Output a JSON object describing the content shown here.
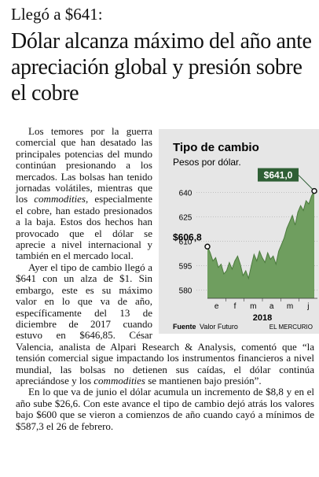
{
  "kicker": "Llegó a $641:",
  "headline": "Dólar alcanza máximo del año ante apreciación global y presión sobre el cobre",
  "paragraphs": [
    [
      "Los temores por la guerra comercial que han desatado las principales potencias del mundo continúan presionando a los mercados. Las bolsas han tenido jornadas volátiles, mientras que los ",
      {
        "em": "commodities"
      },
      ", especialmente el cobre, han estado presionados a la baja. Estos dos hechos han provocado que el dólar se aprecie a nivel internacional y también en el mercado local."
    ],
    [
      "Ayer el tipo de cambio llegó a $641 con un alza de $1. Sin embargo, este es su máximo valor en lo que va de año, específicamente del 13 de diciembre de 2017 cuando estuvo en $646,85. César Valencia, analista de Alpari Research & Analysis, comentó que “la tensión comercial sigue impactando los instrumentos financieros a nivel mundial, las bolsas no detienen sus caídas, el dólar continúa apreciándose y los ",
      {
        "em": "commodities"
      },
      " se mantienen bajo presión”."
    ],
    [
      "En lo que va de junio el dólar acumula un incremento de $8,8 y en el año sube $26,6. Con este avance el tipo de cambio dejó atrás los valores bajo $600 que se vieron a comienzos de año cuando cayó a mínimos de $587,3 el 26 de febrero."
    ]
  ],
  "chart": {
    "type": "area",
    "title": "Tipo de cambio",
    "subtitle": "Pesos por dólar.",
    "months": [
      "e",
      "f",
      "m",
      "a",
      "m",
      "j"
    ],
    "year": "2018",
    "values": [
      606.8,
      603,
      598,
      600,
      594,
      596,
      590,
      592,
      597,
      593,
      598,
      601,
      596,
      589,
      592,
      587.3,
      595,
      602,
      598,
      604,
      600,
      597,
      603,
      599,
      601,
      596,
      604,
      608,
      612,
      618,
      622,
      626,
      620,
      628,
      632,
      629,
      635,
      633,
      638,
      641.0
    ],
    "color": "#6f9e5f",
    "ylim": [
      575,
      650
    ],
    "yticks": [
      580,
      595,
      610,
      625,
      640
    ],
    "grid": true,
    "start_label": {
      "value": 606.8,
      "label": "$606,8"
    },
    "end_label": {
      "value": 641.0,
      "label": "$641,0"
    },
    "source_label": "Fuente",
    "source": "Valor Futuro",
    "brand": "EL MERCURIO"
  }
}
